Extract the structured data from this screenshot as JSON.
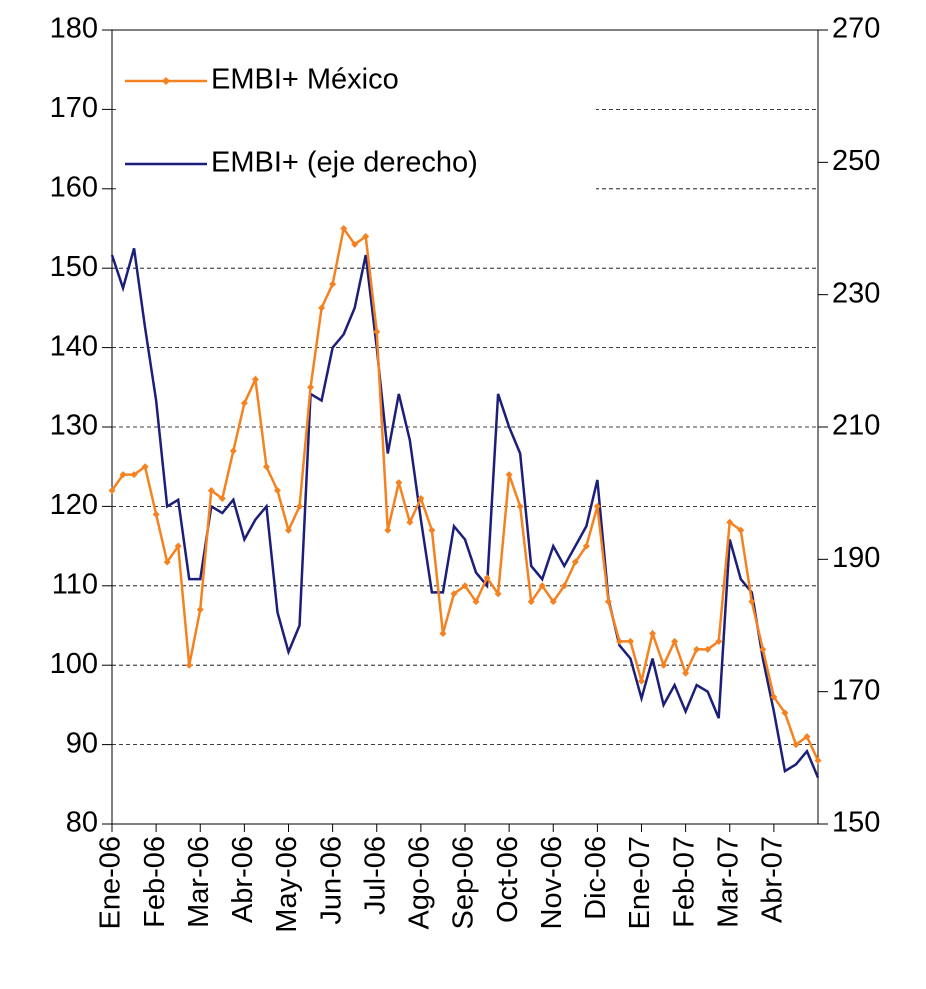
{
  "chart_data": {
    "type": "line",
    "categories": [
      "Ene-06",
      null,
      null,
      null,
      "Feb-06",
      null,
      null,
      null,
      "Mar-06",
      null,
      null,
      null,
      "Abr-06",
      null,
      null,
      null,
      "May-06",
      null,
      null,
      null,
      "Jun-06",
      null,
      null,
      null,
      "Jul-06",
      null,
      null,
      null,
      "Ago-06",
      null,
      null,
      null,
      "Sep-06",
      null,
      null,
      null,
      "Oct-06",
      null,
      null,
      null,
      "Nov-06",
      null,
      null,
      null,
      "Dic-06",
      null,
      null,
      null,
      "Ene-07",
      null,
      null,
      null,
      "Feb-07",
      null,
      null,
      null,
      "Mar-07",
      null,
      null,
      null,
      "Abr-07",
      null,
      null,
      null,
      null
    ],
    "series": [
      {
        "name": "EMBI+ México",
        "color": "#f58220",
        "marker": "diamond",
        "values": [
          122,
          124,
          124,
          125,
          119,
          113,
          115,
          100,
          107,
          122,
          121,
          127,
          133,
          136,
          125,
          122,
          117,
          120,
          135,
          145,
          148,
          155,
          153,
          154,
          142,
          117,
          123,
          118,
          121,
          117,
          104,
          109,
          110,
          108,
          111,
          109,
          124,
          120,
          108,
          110,
          108,
          110,
          113,
          115,
          120,
          108,
          103,
          103,
          98,
          104,
          100,
          103,
          99,
          102,
          102,
          103,
          118,
          117,
          108,
          102,
          96,
          94,
          90,
          91,
          88
        ]
      },
      {
        "name": "EMBI+ (eje derecho)",
        "color": "#1c1f7a",
        "axis": "y2",
        "values": [
          236,
          231,
          237,
          225,
          214,
          198,
          199,
          187,
          187,
          198,
          197,
          199,
          193,
          196,
          198,
          182,
          176,
          180,
          215,
          214,
          222,
          224,
          228,
          236,
          222,
          206,
          215,
          208,
          196,
          185,
          185,
          195,
          193,
          188,
          186,
          215,
          210,
          206,
          189,
          187,
          192,
          189,
          192,
          195,
          202,
          184,
          177,
          175,
          169,
          175,
          168,
          171,
          167,
          171,
          170,
          166,
          193,
          187,
          185,
          175,
          167,
          158,
          159,
          161,
          157
        ]
      }
    ],
    "ylim": [
      80,
      180
    ],
    "yticks": [
      80,
      90,
      100,
      110,
      120,
      130,
      140,
      150,
      160,
      170,
      180
    ],
    "y2lim": [
      150,
      270
    ],
    "y2ticks": [
      150,
      170,
      190,
      210,
      230,
      250,
      270
    ],
    "grid": true,
    "legend": "top-left"
  }
}
